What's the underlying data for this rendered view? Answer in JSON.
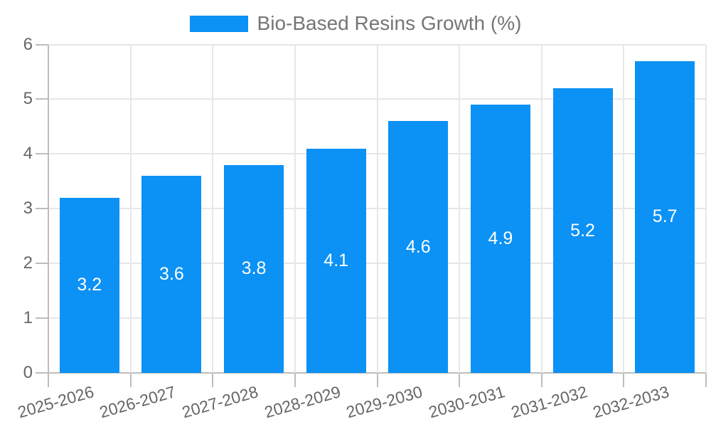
{
  "legend": {
    "label": "Bio-Based Resins Growth (%)"
  },
  "chart_data": {
    "type": "bar",
    "title": "Bio-Based Resins Growth (%)",
    "categories": [
      "2025-2026",
      "2026-2027",
      "2027-2028",
      "2028-2029",
      "2029-2030",
      "2030-2031",
      "2031-2032",
      "2032-2033"
    ],
    "values": [
      3.2,
      3.6,
      3.8,
      4.1,
      4.6,
      4.9,
      5.2,
      5.7
    ],
    "value_labels": [
      "3.2",
      "3.6",
      "3.8",
      "4.1",
      "4.6",
      "4.9",
      "5.2",
      "5.7"
    ],
    "series": [
      {
        "name": "Bio-Based Resins Growth (%)",
        "values": [
          3.2,
          3.6,
          3.8,
          4.1,
          4.6,
          4.9,
          5.2,
          5.7
        ]
      }
    ],
    "xlabel": "",
    "ylabel": "",
    "ylim": [
      0,
      6
    ],
    "yticks": [
      0,
      1,
      2,
      3,
      4,
      5,
      6
    ],
    "grid": true,
    "legend_position": "top"
  },
  "colors": {
    "background": "#ffffff",
    "bar": "#0c91f5",
    "bar_label": "#ffffff",
    "gridline": "#e7e7e7",
    "axis_line": "#bdbdbd",
    "tick_label": "#666666",
    "legend_text": "#757575"
  }
}
